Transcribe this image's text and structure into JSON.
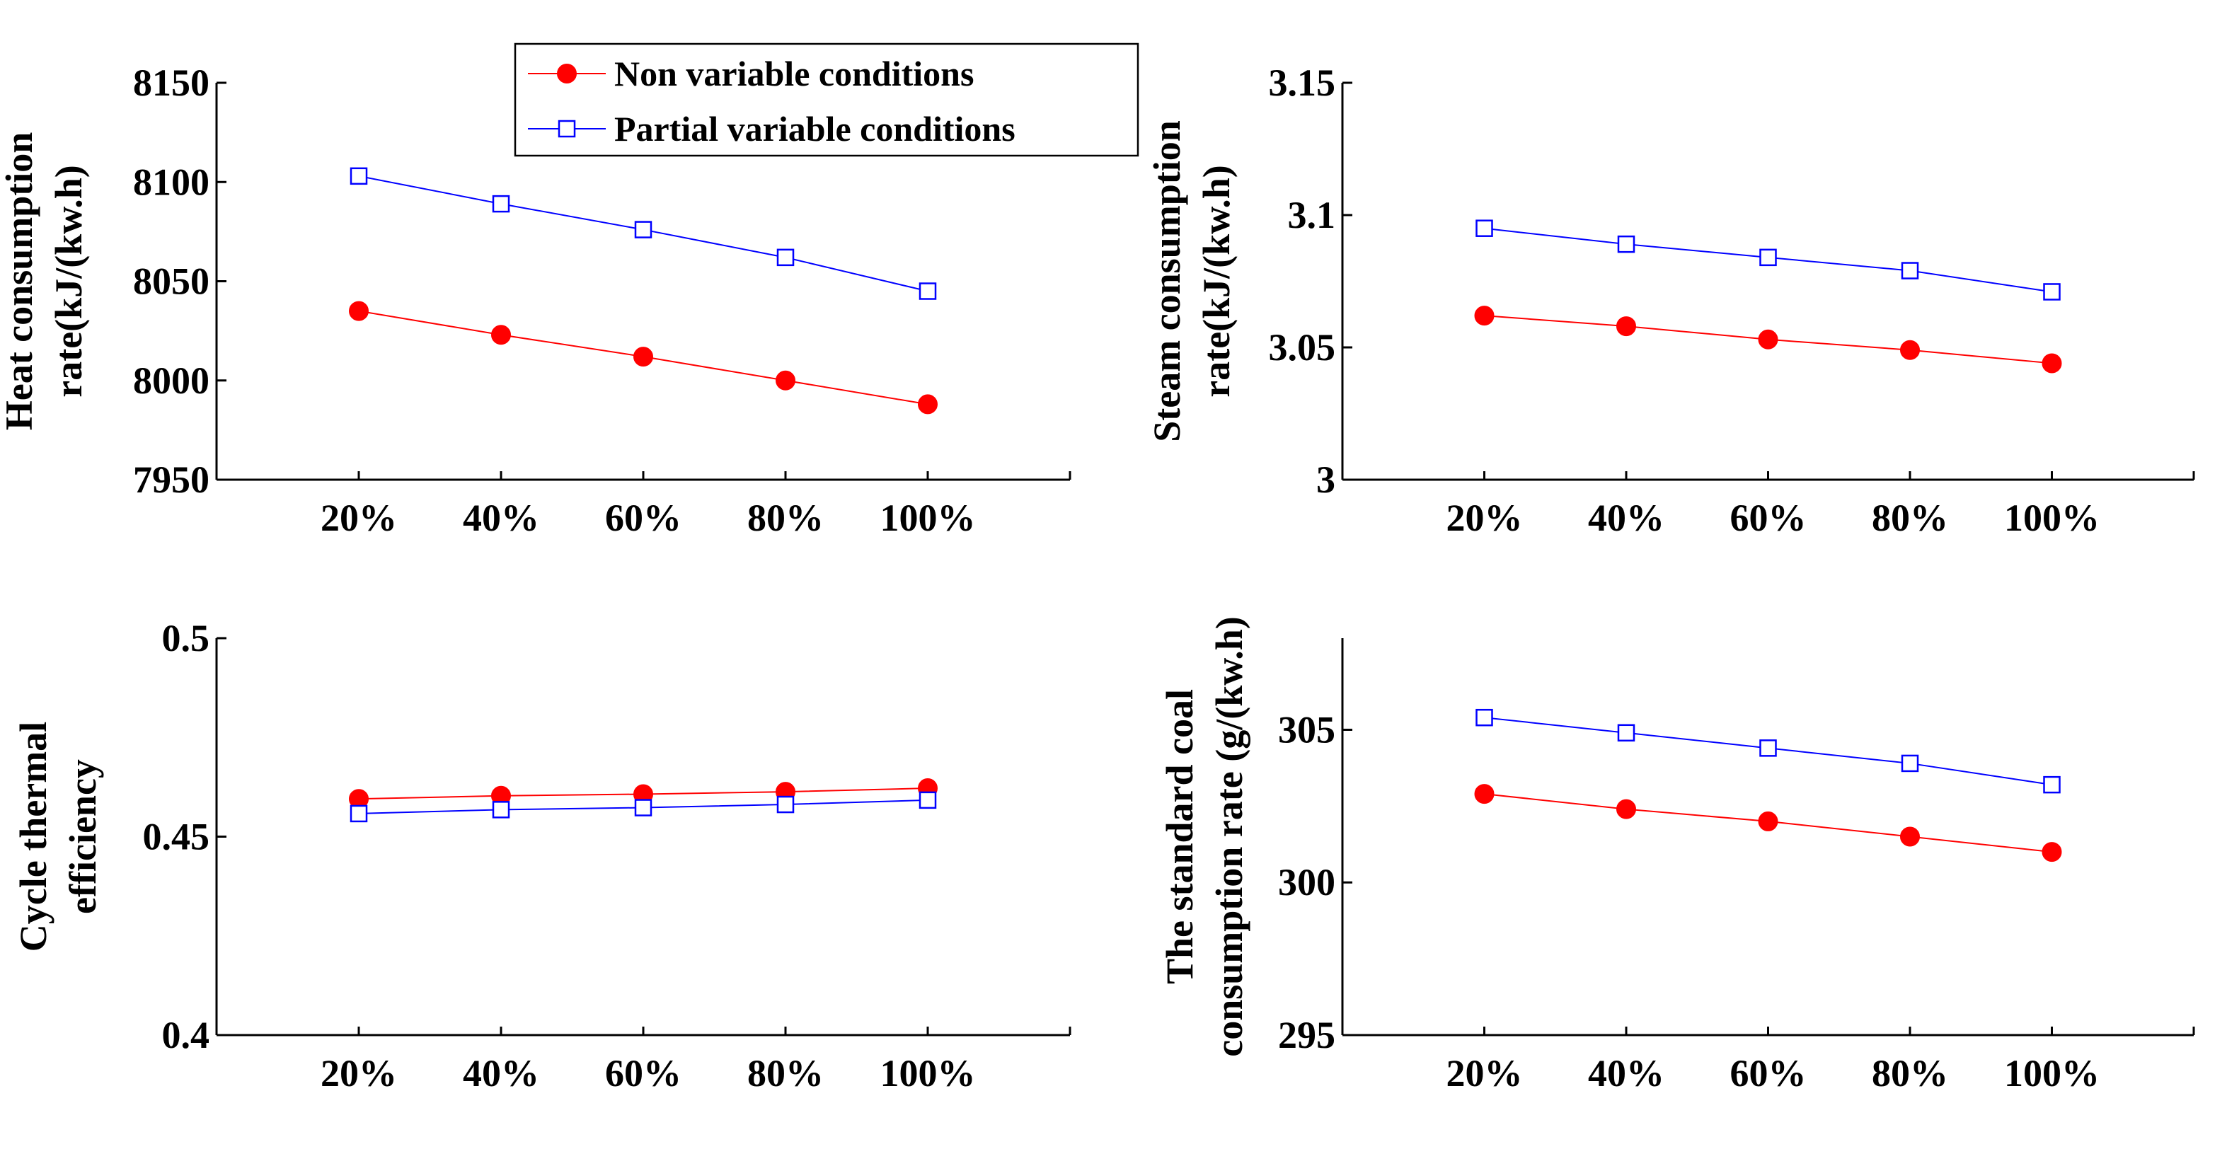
{
  "legend": {
    "entries": [
      {
        "label": "Non variable conditions",
        "color": "#ff0000",
        "marker": "filled-circle"
      },
      {
        "label": "Partial variable conditions",
        "color": "#0000ff",
        "marker": "open-square"
      }
    ]
  },
  "chart_data": [
    {
      "type": "line",
      "id": "heat",
      "categories": [
        "20%",
        "40%",
        "60%",
        "80%",
        "100%"
      ],
      "xlim": [
        0,
        6
      ],
      "ylim": [
        7950,
        8150
      ],
      "yticks": [
        "7950",
        "8000",
        "8050",
        "8100",
        "8150"
      ],
      "ylabel": [
        "Heat consumption",
        "rate(kJ/(kw.h)"
      ],
      "series": [
        {
          "name": "Non variable conditions",
          "values": [
            8035,
            8023,
            8012,
            8000,
            7988
          ],
          "color": "#ff0000",
          "marker": "filled-circle"
        },
        {
          "name": "Partial variable conditions",
          "values": [
            8103,
            8089,
            8076,
            8062,
            8045
          ],
          "color": "#0000ff",
          "marker": "open-square"
        }
      ]
    },
    {
      "type": "line",
      "id": "steam",
      "categories": [
        "20%",
        "40%",
        "60%",
        "80%",
        "100%"
      ],
      "xlim": [
        0,
        6
      ],
      "ylim": [
        3,
        3.15
      ],
      "yticks": [
        "3",
        "3.05",
        "3.1",
        "3.15"
      ],
      "ylabel": [
        "Steam consumption",
        "rate(kJ/(kw.h)"
      ],
      "series": [
        {
          "name": "Non variable conditions",
          "values": [
            3.062,
            3.058,
            3.053,
            3.049,
            3.044
          ],
          "color": "#ff0000",
          "marker": "filled-circle"
        },
        {
          "name": "Partial variable conditions",
          "values": [
            3.095,
            3.089,
            3.084,
            3.079,
            3.071
          ],
          "color": "#0000ff",
          "marker": "open-square"
        }
      ]
    },
    {
      "type": "line",
      "id": "efficiency",
      "categories": [
        "20%",
        "40%",
        "60%",
        "80%",
        "100%"
      ],
      "xlim": [
        0,
        6
      ],
      "ylim": [
        0.4,
        0.5
      ],
      "yticks": [
        "0.4",
        "0.45",
        "0.5"
      ],
      "ylabel": [
        "Cycle thermal",
        "efficiency"
      ],
      "series": [
        {
          "name": "Non variable conditions",
          "values": [
            0.4595,
            0.4603,
            0.4607,
            0.4613,
            0.4622
          ],
          "color": "#ff0000",
          "marker": "filled-circle"
        },
        {
          "name": "Partial variable conditions",
          "values": [
            0.4558,
            0.4568,
            0.4573,
            0.4581,
            0.4592
          ],
          "color": "#0000ff",
          "marker": "open-square"
        }
      ]
    },
    {
      "type": "line",
      "id": "coal",
      "categories": [
        "20%",
        "40%",
        "60%",
        "80%",
        "100%"
      ],
      "xlim": [
        0,
        6
      ],
      "ylim": [
        295,
        308
      ],
      "yticks": [
        "295",
        "300",
        "305"
      ],
      "ylabel": [
        "The standard coal",
        "consumption rate  (g/(kw.h)"
      ],
      "series": [
        {
          "name": "Non variable conditions",
          "values": [
            302.9,
            302.4,
            302.0,
            301.5,
            301.0
          ],
          "color": "#ff0000",
          "marker": "filled-circle"
        },
        {
          "name": "Partial variable conditions",
          "values": [
            305.4,
            304.9,
            304.4,
            303.9,
            303.2
          ],
          "color": "#0000ff",
          "marker": "open-square"
        }
      ]
    }
  ]
}
